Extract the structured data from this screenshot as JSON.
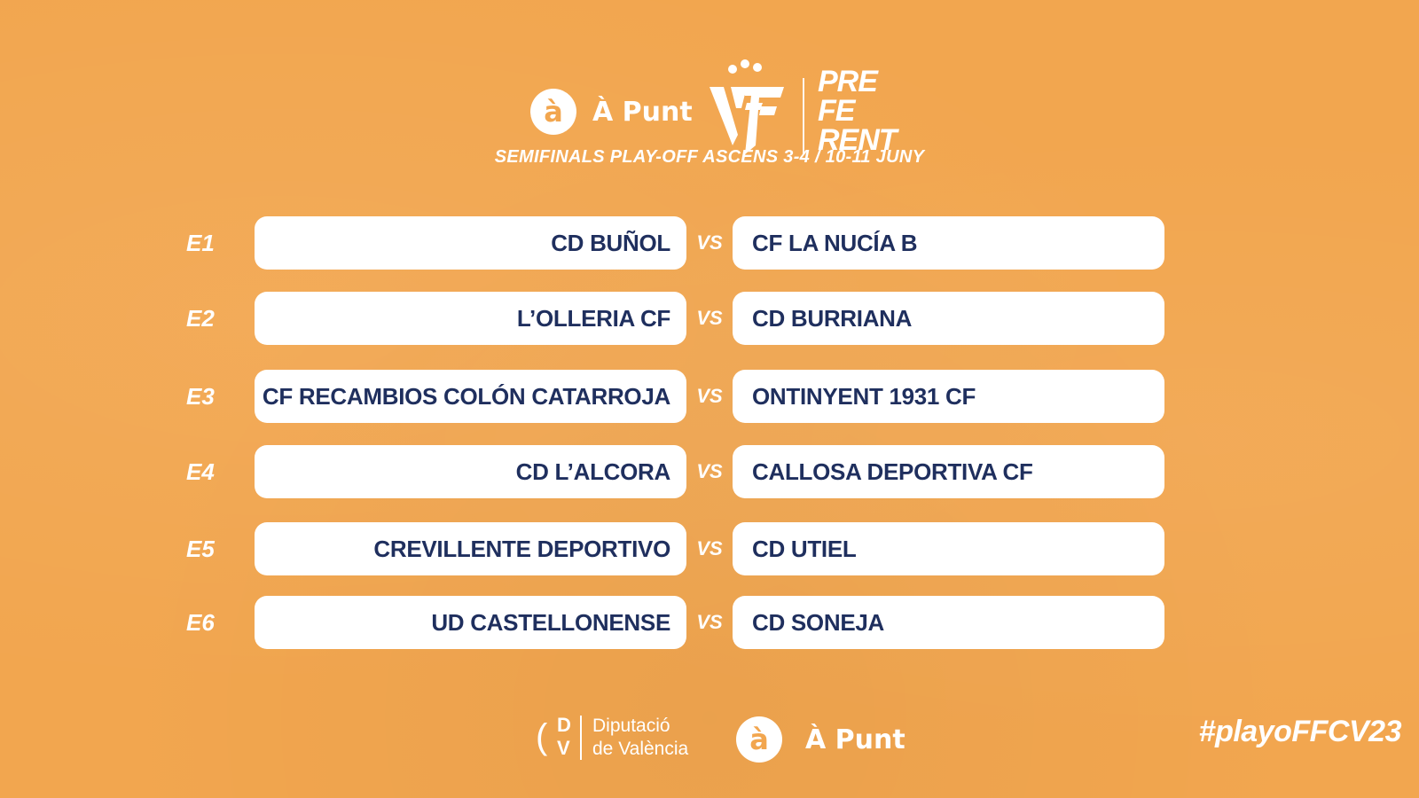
{
  "header": {
    "broadcaster": "À Punt",
    "broadcaster_icon": "à",
    "competition_lines": [
      "PRE",
      "FE",
      "RENT"
    ],
    "subtitle": "SEMIFINALS PLAY-OFF ASCENS 3-4 / 10-11 JUNY"
  },
  "vs_label": "VS",
  "matches": [
    {
      "code": "E1",
      "home": "CD BUÑOL",
      "away": "CF LA NUCÍA B"
    },
    {
      "code": "E2",
      "home": "L’OLLERIA CF",
      "away": "CD BURRIANA"
    },
    {
      "code": "E3",
      "home": "CF RECAMBIOS COLÓN CATARROJA",
      "away": "ONTINYENT 1931 CF"
    },
    {
      "code": "E4",
      "home": "CD L’ALCORA",
      "away": "CALLOSA DEPORTIVA CF"
    },
    {
      "code": "E5",
      "home": "CREVILLENTE DEPORTIVO",
      "away": "CD UTIEL"
    },
    {
      "code": "E6",
      "home": "UD CASTELLONENSE",
      "away": "CD SONEJA"
    }
  ],
  "footer": {
    "sponsor_mark": {
      "c": "(",
      "d": "D",
      "v": "V"
    },
    "sponsor_line1": "Diputació",
    "sponsor_line2": "de València",
    "broadcaster": "À Punt",
    "broadcaster_icon": "à",
    "hashtag": "#playoFFCV23"
  },
  "colors": {
    "background": "#f2a64f",
    "team_text": "#1f2f5e",
    "card": "#ffffff"
  }
}
